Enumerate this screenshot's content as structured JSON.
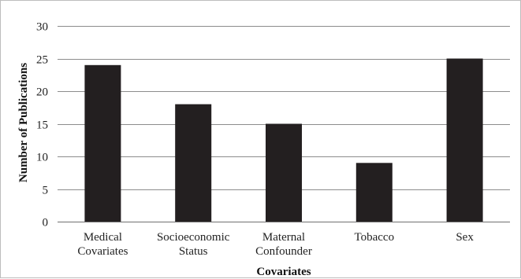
{
  "chart_data": {
    "type": "bar",
    "categories": [
      [
        "Medical",
        "Covariates"
      ],
      [
        "Socioeconomic",
        "Status"
      ],
      [
        "Maternal",
        "Confounder"
      ],
      [
        "Tobacco"
      ],
      [
        "Sex"
      ]
    ],
    "values": [
      24,
      18,
      15,
      9,
      25
    ],
    "xlabel": "Covariates",
    "ylabel": "Number of Publications",
    "ylim": [
      0,
      30
    ],
    "yticks": [
      0,
      5,
      10,
      15,
      20,
      25,
      30
    ],
    "grid": true,
    "legend": "none",
    "bar_color": "#231f20",
    "grid_color": "#8c8c8c"
  }
}
